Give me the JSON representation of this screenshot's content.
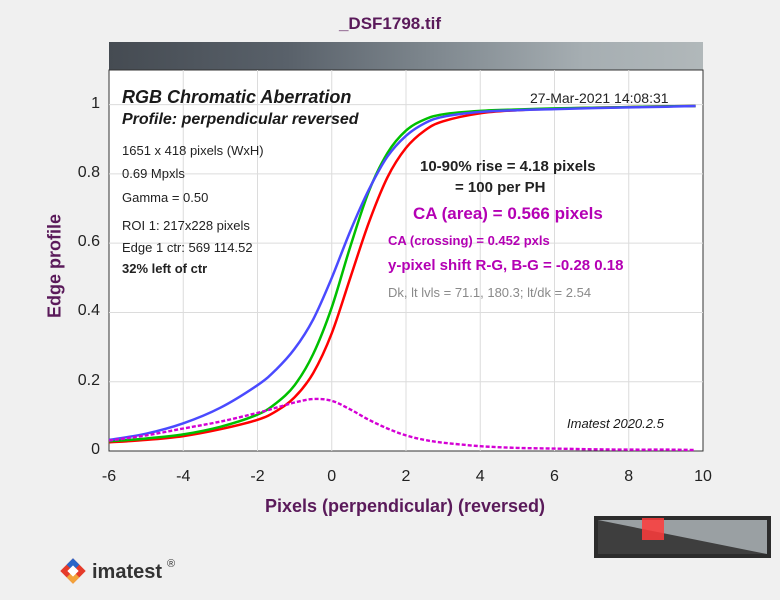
{
  "figure_title": "_DSF1798.tif",
  "chart_data": {
    "type": "line",
    "title": "RGB Chromatic Aberration",
    "subtitle": "Profile: perpendicular reversed",
    "xlabel": "Pixels (perpendicular)   (reversed)",
    "ylabel": "Edge profile",
    "xlim": [
      -6,
      10
    ],
    "ylim": [
      0,
      1.1
    ],
    "xticks": [
      -6,
      -4,
      -2,
      0,
      2,
      4,
      6,
      8,
      10
    ],
    "yticks": [
      0,
      0.2,
      0.4,
      0.6,
      0.8,
      1
    ],
    "grid": true,
    "x": [
      -6,
      -5,
      -4,
      -3,
      -2,
      -1.5,
      -1,
      -0.5,
      0,
      0.5,
      1,
      1.5,
      2,
      2.5,
      3,
      4,
      5,
      6,
      7,
      8,
      9,
      9.8
    ],
    "series": [
      {
        "color": "#ff0000",
        "values": [
          0.025,
          0.032,
          0.043,
          0.063,
          0.09,
          0.115,
          0.155,
          0.225,
          0.34,
          0.5,
          0.66,
          0.79,
          0.875,
          0.925,
          0.952,
          0.975,
          0.984,
          0.988,
          0.991,
          0.993,
          0.995,
          0.996
        ]
      },
      {
        "color": "#00c000",
        "values": [
          0.028,
          0.036,
          0.048,
          0.07,
          0.105,
          0.138,
          0.19,
          0.28,
          0.415,
          0.59,
          0.75,
          0.86,
          0.925,
          0.957,
          0.972,
          0.982,
          0.986,
          0.989,
          0.991,
          0.993,
          0.995,
          0.996
        ]
      },
      {
        "color": "#4a4aff",
        "values": [
          0.032,
          0.05,
          0.08,
          0.125,
          0.19,
          0.235,
          0.295,
          0.38,
          0.5,
          0.635,
          0.755,
          0.85,
          0.91,
          0.946,
          0.965,
          0.979,
          0.984,
          0.987,
          0.99,
          0.992,
          0.994,
          0.996
        ]
      },
      {
        "color": "#d400d4",
        "dashed": true,
        "values": [
          0.03,
          0.045,
          0.065,
          0.085,
          0.11,
          0.125,
          0.14,
          0.15,
          0.145,
          0.12,
          0.09,
          0.065,
          0.045,
          0.032,
          0.024,
          0.014,
          0.009,
          0.007,
          0.005,
          0.004,
          0.004,
          0.003
        ]
      }
    ]
  },
  "timestamp": "27-Mar-2021 14:08:31",
  "info": [
    "1651 x 418 pixels (WxH)",
    "0.69 Mpxls",
    "Gamma = 0.50",
    "ROI 1: 217x228 pixels",
    "Edge 1 ctr: 569  114.52",
    "32% left of ctr"
  ],
  "rise_line1": "10-90% rise = 4.18 pixels",
  "rise_line2": "= 100 per PH",
  "ca_area": "CA (area) = 0.566 pixels",
  "ca_crossing": "CA (crossing) = 0.452 pxls",
  "shift": "y-pixel shift R-G, B-G = -0.28  0.18",
  "levels": "Dk, lt lvls = 71.1, 180.3;  lt/dk = 2.54",
  "version": "Imatest 2020.2.5",
  "logo_text": "imatest",
  "logo_mark": "®",
  "colors": {
    "title": "#5a1a5a",
    "annotation": "#b400b4"
  }
}
